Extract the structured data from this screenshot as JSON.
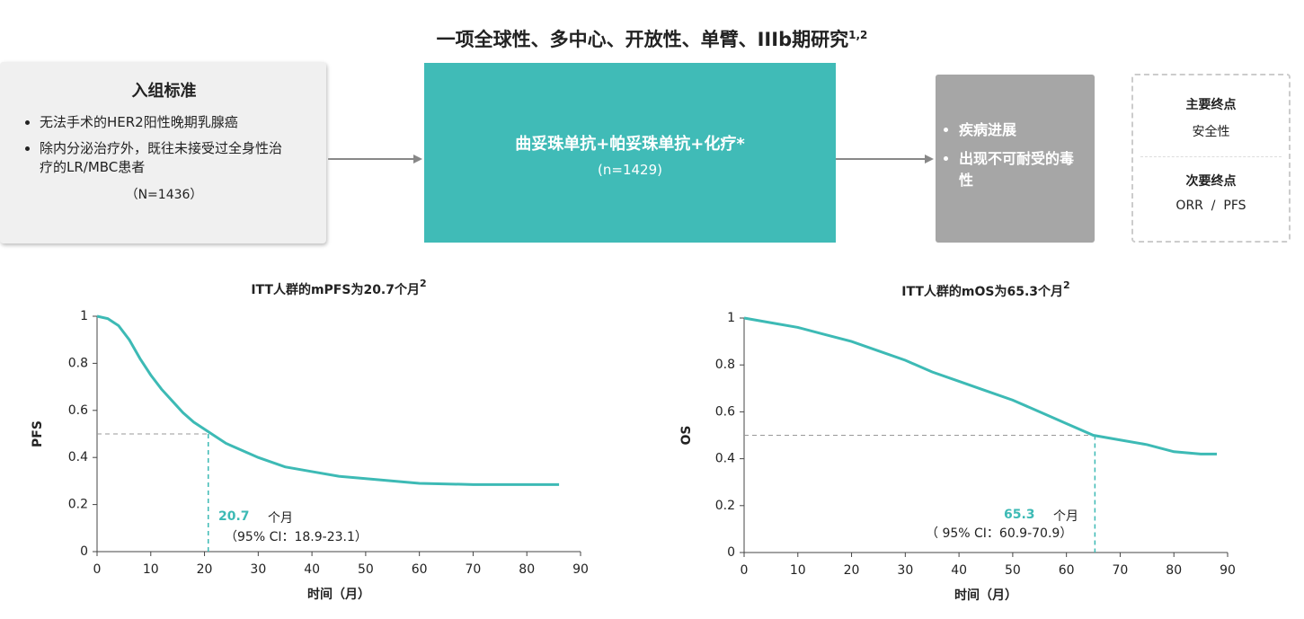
{
  "header": {
    "title": "一项全球性、多中心、开放性、单臂、IIIb期研究",
    "title_sup": "1,2"
  },
  "enrollment": {
    "heading": "入组标准",
    "bullets": [
      "无法手术的HER2阳性晚期乳腺癌",
      "除内分泌治疗外，既往未接受过全身性治疗的LR/MBC患者"
    ],
    "n": "（N=1436）"
  },
  "treatment": {
    "label": "曲妥珠单抗+帕妥珠单抗+化疗*",
    "n": "(n=1429)"
  },
  "stop": {
    "bullets": [
      "疾病进展",
      "出现不可耐受的毒性"
    ]
  },
  "endpoints": {
    "primary_heading": "主要终点",
    "primary": "安全性",
    "secondary_heading": "次要终点",
    "secondary": "ORR  /  PFS"
  },
  "chart_data": [
    {
      "type": "line",
      "title": "ITT人群的mPFS为20.7个月",
      "title_sup": "2",
      "x_label": "时间（月）",
      "y_label": "PFS",
      "color": "#3dbab5",
      "x": [
        0,
        2,
        4,
        6,
        8,
        10,
        12,
        14,
        16,
        18,
        20,
        22,
        24,
        26,
        28,
        30,
        35,
        40,
        45,
        50,
        55,
        60,
        70,
        80,
        86
      ],
      "values": [
        1,
        0.99,
        0.96,
        0.9,
        0.82,
        0.75,
        0.69,
        0.64,
        0.59,
        0.55,
        0.52,
        0.49,
        0.46,
        0.44,
        0.42,
        0.4,
        0.36,
        0.34,
        0.32,
        0.31,
        0.3,
        0.29,
        0.285,
        0.285,
        0.285
      ],
      "xlim": [
        0,
        90
      ],
      "xticks": [
        0,
        10,
        20,
        30,
        40,
        50,
        60,
        70,
        80,
        90
      ],
      "ylim": [
        0,
        1
      ],
      "yticks": [
        0,
        0.2,
        0.4,
        0.6,
        0.8,
        1
      ],
      "median": 20.7,
      "median_level": 0.5,
      "median_unit": "个月",
      "median_ci": "（95% CI：18.9-23.1）"
    },
    {
      "type": "line",
      "title": "ITT人群的mOS为65.3个月",
      "title_sup": "2",
      "x_label": "时间（月）",
      "y_label": "OS",
      "color": "#3dbab5",
      "x": [
        0,
        5,
        10,
        15,
        20,
        25,
        30,
        35,
        40,
        45,
        50,
        55,
        60,
        65,
        70,
        75,
        80,
        85,
        88
      ],
      "values": [
        1,
        0.98,
        0.96,
        0.93,
        0.9,
        0.86,
        0.82,
        0.77,
        0.73,
        0.69,
        0.65,
        0.6,
        0.55,
        0.5,
        0.48,
        0.46,
        0.43,
        0.42,
        0.42
      ],
      "xlim": [
        0,
        90
      ],
      "xticks": [
        0,
        10,
        20,
        30,
        40,
        50,
        60,
        70,
        80,
        90
      ],
      "ylim": [
        0,
        1
      ],
      "yticks": [
        0,
        0.2,
        0.4,
        0.6,
        0.8,
        1
      ],
      "median": 65.3,
      "median_level": 0.5,
      "median_unit": "个月",
      "median_ci": "（ 95% CI：60.9-70.9）"
    }
  ]
}
